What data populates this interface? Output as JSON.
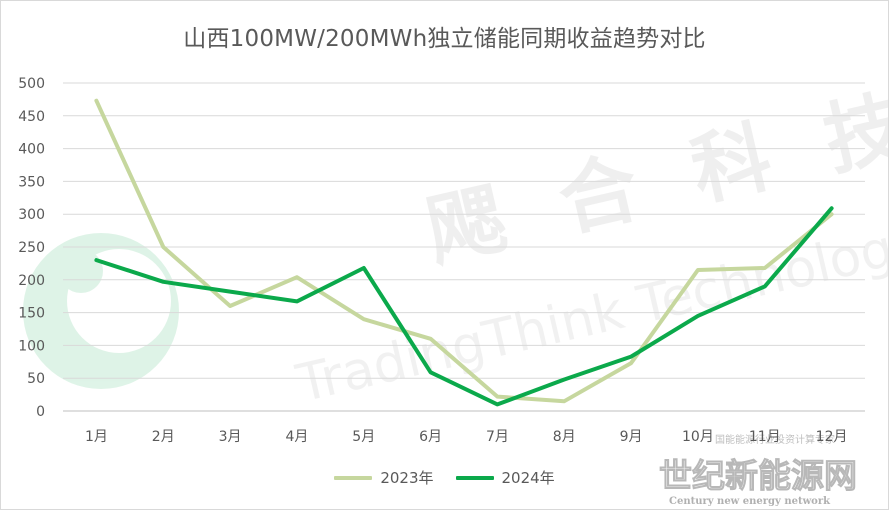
{
  "chart_data": {
    "type": "line",
    "title": "山西100MW/200MWh独立储能同期收益趋势对比",
    "categories": [
      "1月",
      "2月",
      "3月",
      "4月",
      "5月",
      "6月",
      "7月",
      "8月",
      "9月",
      "10月",
      "11月",
      "12月"
    ],
    "series": [
      {
        "name": "2023年",
        "color": "#c6d79e",
        "values": [
          473,
          250,
          160,
          204,
          140,
          110,
          22,
          15,
          73,
          215,
          218,
          300
        ]
      },
      {
        "name": "2024年",
        "color": "#0ba94b",
        "values": [
          230,
          197,
          182,
          167,
          218,
          59,
          10,
          48,
          83,
          145,
          190,
          309
        ]
      }
    ],
    "yticks": [
      0,
      50,
      100,
      150,
      200,
      250,
      300,
      350,
      400,
      450,
      500
    ],
    "ylim": [
      0,
      500
    ],
    "grid": true,
    "legend_position": "bottom"
  },
  "watermark": {
    "top_text": "飔合科技",
    "en_text": "TradingThink Technology",
    "bottom_cn": "世纪新能源网",
    "bottom_en": "Century new energy network",
    "small_caption": "国能能源行业投资计算专家"
  }
}
